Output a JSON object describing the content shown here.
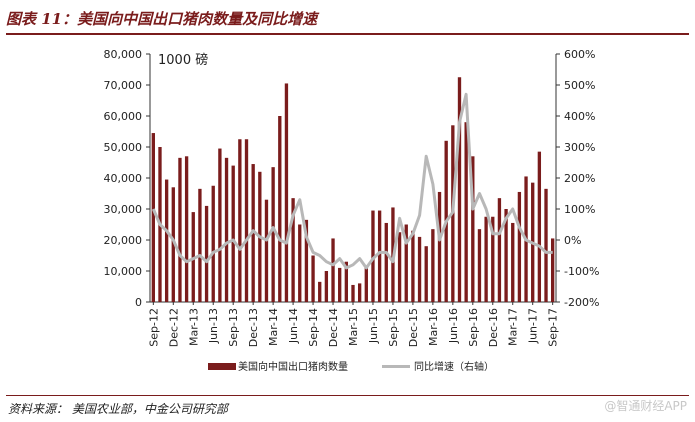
{
  "figure": {
    "title": "图表 11：美国向中国出口猪肉数量及同比增速",
    "source": "资料来源：  美国农业部，中金公司研究部",
    "watermark": "@智通财经APP"
  },
  "chart_data": {
    "type": "bar+line",
    "unit_label": "1000 磅",
    "x_tick_labels": [
      "Sep-12",
      "Dec-12",
      "Mar-13",
      "Jun-13",
      "Sep-13",
      "Dec-13",
      "Mar-14",
      "Jun-14",
      "Sep-14",
      "Dec-14",
      "Mar-15",
      "Jun-15",
      "Sep-15",
      "Dec-15",
      "Mar-16",
      "Jun-16",
      "Sep-16",
      "Dec-16",
      "Mar-17",
      "Jun-17",
      "Sep-17"
    ],
    "months": [
      "2012-09",
      "2012-10",
      "2012-11",
      "2012-12",
      "2013-01",
      "2013-02",
      "2013-03",
      "2013-04",
      "2013-05",
      "2013-06",
      "2013-07",
      "2013-08",
      "2013-09",
      "2013-10",
      "2013-11",
      "2013-12",
      "2014-01",
      "2014-02",
      "2014-03",
      "2014-04",
      "2014-05",
      "2014-06",
      "2014-07",
      "2014-08",
      "2014-09",
      "2014-10",
      "2014-11",
      "2014-12",
      "2015-01",
      "2015-02",
      "2015-03",
      "2015-04",
      "2015-05",
      "2015-06",
      "2015-07",
      "2015-08",
      "2015-09",
      "2015-10",
      "2015-11",
      "2015-12",
      "2016-01",
      "2016-02",
      "2016-03",
      "2016-04",
      "2016-05",
      "2016-06",
      "2016-07",
      "2016-08",
      "2016-09",
      "2016-10",
      "2016-11",
      "2016-12",
      "2017-01",
      "2017-02",
      "2017-03",
      "2017-04",
      "2017-05",
      "2017-06",
      "2017-07",
      "2017-08",
      "2017-09"
    ],
    "y_left": {
      "min": 0,
      "max": 80000,
      "step": 10000,
      "tick_labels": [
        "0",
        "10,000",
        "20,000",
        "30,000",
        "40,000",
        "50,000",
        "60,000",
        "70,000",
        "80,000"
      ]
    },
    "y_right": {
      "min": -200,
      "max": 600,
      "step": 100,
      "tick_labels": [
        "-200%",
        "-100%",
        "0%",
        "100%",
        "200%",
        "300%",
        "400%",
        "500%",
        "600%"
      ]
    },
    "series": [
      {
        "name": "美国向中国出口猪肉数量",
        "type": "bar",
        "axis": "left",
        "color": "#7a1c1c",
        "values": [
          54500,
          50000,
          39500,
          37000,
          46500,
          47000,
          29000,
          36500,
          31000,
          37500,
          49500,
          46500,
          44000,
          52500,
          52500,
          44500,
          42000,
          33000,
          43500,
          60000,
          70500,
          33500,
          25000,
          26500,
          15000,
          6500,
          10000,
          20500,
          11000,
          13000,
          5500,
          6000,
          11000,
          29500,
          29500,
          25500,
          30500,
          22500,
          25000,
          23000,
          21000,
          18000,
          23500,
          35500,
          52000,
          57000,
          72500,
          58000,
          47000,
          23500,
          27500,
          27500,
          33500,
          30000,
          25500,
          35500,
          40500,
          38500,
          48500,
          36500,
          20500
        ]
      },
      {
        "name": "同比增速（右轴）",
        "type": "line",
        "axis": "right",
        "color": "#b8b8b8",
        "values": [
          100,
          50,
          30,
          0,
          -50,
          -70,
          -60,
          -50,
          -70,
          -40,
          -30,
          -10,
          0,
          -30,
          0,
          30,
          10,
          0,
          40,
          0,
          -10,
          80,
          130,
          10,
          -40,
          -50,
          -70,
          -80,
          -60,
          -90,
          -80,
          -60,
          -90,
          -60,
          -40,
          -40,
          -70,
          70,
          -10,
          20,
          80,
          270,
          180,
          0,
          60,
          90,
          380,
          470,
          100,
          150,
          100,
          20,
          20,
          70,
          100,
          40,
          0,
          -10,
          -20,
          -40,
          -40
        ]
      }
    ]
  }
}
